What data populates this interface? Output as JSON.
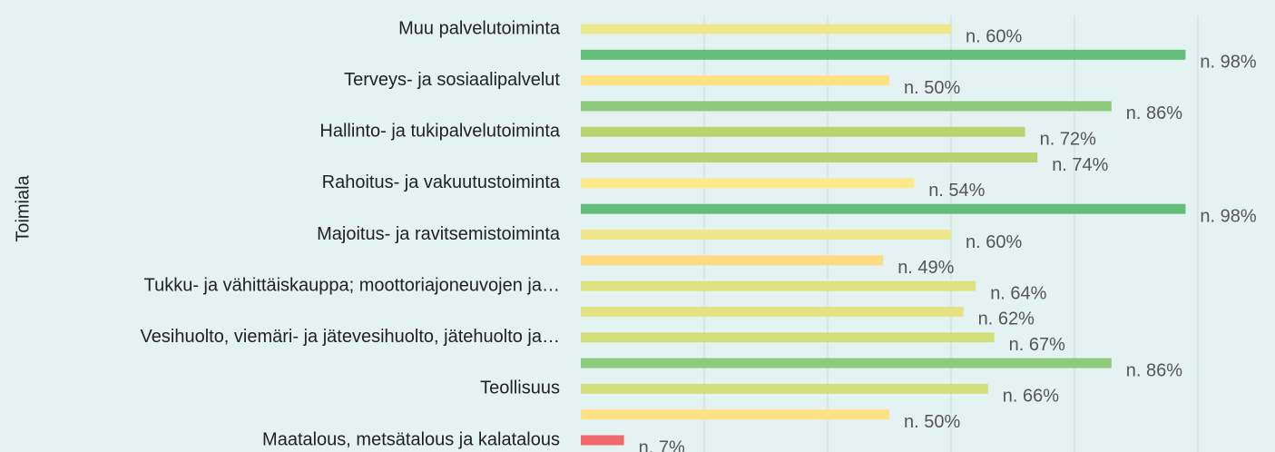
{
  "chart_data": {
    "type": "hbar",
    "y_label": "Toimiala",
    "categories": [
      "Muu palvelutoiminta",
      null,
      "Terveys- ja sosiaalipalvelut",
      null,
      "Hallinto- ja tukipalvelutoiminta",
      null,
      "Rahoitus- ja vakuutustoiminta",
      null,
      "Majoitus- ja ravitsemistoiminta",
      null,
      "Tukku- ja vähittäiskauppa; moottoriajoneuvojen ja…",
      null,
      "Vesihuolto, viemäri- ja jätevesihuolto, jätehuolto ja…",
      null,
      "Teollisuus",
      null,
      "Maatalous, metsätalous ja kalatalous"
    ],
    "values": [
      60,
      98,
      50,
      86,
      72,
      74,
      54,
      98,
      60,
      49,
      64,
      62,
      67,
      86,
      66,
      50,
      7
    ],
    "value_labels": [
      "n. 60%",
      "n. 98%",
      "n. 50%",
      "n. 86%",
      "n. 72%",
      "n. 74%",
      "n. 54%",
      "n. 98%",
      "n. 60%",
      "n. 49%",
      "n. 64%",
      "n. 62%",
      "n. 67%",
      "n. 86%",
      "n. 66%",
      "n. 50%",
      "n. 7%"
    ],
    "colors": [
      "#ede68a",
      "#63be7b",
      "#fde283",
      "#8fc97c",
      "#b9d46f",
      "#b5d36f",
      "#fee98a",
      "#63be7b",
      "#ede68a",
      "#fddb80",
      "#dde27f",
      "#e5e282",
      "#d1df7a",
      "#8fc97c",
      "#d4df7b",
      "#fde283",
      "#f0696b"
    ],
    "xlim": [
      0,
      112.5
    ],
    "xticks": [
      0,
      20,
      40,
      60,
      80,
      100
    ],
    "grid": true
  }
}
